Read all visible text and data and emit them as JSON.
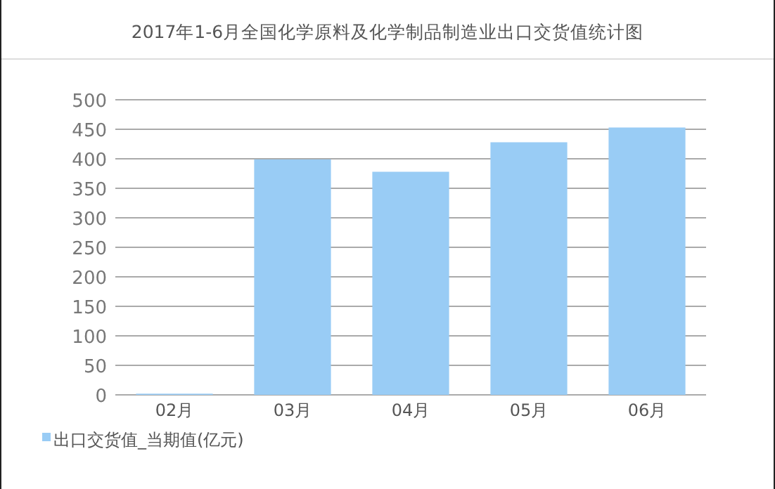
{
  "chart_data": {
    "type": "bar",
    "title": "2017年1-6月全国化学原料及化学制品制造业出口交货值统计图",
    "categories": [
      "02月",
      "03月",
      "04月",
      "05月",
      "06月"
    ],
    "series": [
      {
        "name": "出口交货值_当期值(亿元)",
        "color": "#99ccf5",
        "values": [
          2,
          399,
          378,
          428,
          453
        ]
      }
    ],
    "ylim": [
      0,
      500
    ],
    "yticks": [
      0,
      50,
      100,
      150,
      200,
      250,
      300,
      350,
      400,
      450,
      500
    ],
    "grid": "y",
    "legend": "bottom left"
  }
}
